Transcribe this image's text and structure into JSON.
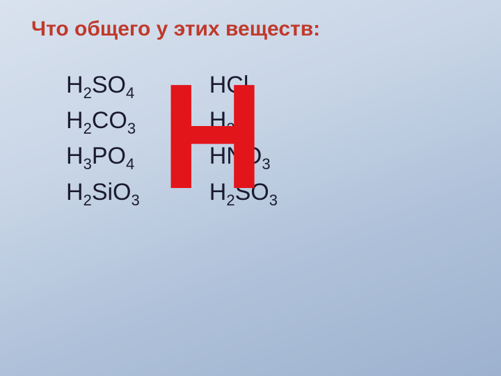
{
  "title": "Что общего у этих веществ:",
  "title_color": "#c0392b",
  "formula_color": "#1a1a2e",
  "big_letter": "Н",
  "big_letter_color": "#e2151a",
  "background_gradient": [
    "#d9e2ee",
    "#c8d5e6",
    "#b0c2da",
    "#9db2cf"
  ],
  "columns": [
    {
      "items": [
        {
          "parts": [
            {
              "t": "H"
            },
            {
              "t": "2",
              "sub": true
            },
            {
              "t": "SO"
            },
            {
              "t": "4",
              "sub": true
            }
          ]
        },
        {
          "parts": [
            {
              "t": "H"
            },
            {
              "t": "2",
              "sub": true
            },
            {
              "t": "CO"
            },
            {
              "t": "3",
              "sub": true
            }
          ]
        },
        {
          "parts": [
            {
              "t": "H"
            },
            {
              "t": "3",
              "sub": true
            },
            {
              "t": "PO"
            },
            {
              "t": "4",
              "sub": true
            }
          ]
        },
        {
          "parts": [
            {
              "t": "H"
            },
            {
              "t": "2",
              "sub": true
            },
            {
              "t": "SiO"
            },
            {
              "t": "3",
              "sub": true
            }
          ]
        }
      ]
    },
    {
      "items": [
        {
          "parts": [
            {
              "t": "HCl"
            }
          ]
        },
        {
          "parts": [
            {
              "t": "H"
            },
            {
              "t": "2",
              "sub": true
            },
            {
              "t": "S"
            }
          ]
        },
        {
          "parts": [
            {
              "t": "HNO"
            },
            {
              "t": "3",
              "sub": true
            }
          ]
        },
        {
          "parts": [
            {
              "t": "H"
            },
            {
              "t": "2",
              "sub": true
            },
            {
              "t": "SO"
            },
            {
              "t": "3",
              "sub": true
            }
          ]
        }
      ]
    }
  ],
  "font_sizes": {
    "title": 30,
    "formula": 34,
    "formula_sub": 22,
    "big_letter": 215
  }
}
